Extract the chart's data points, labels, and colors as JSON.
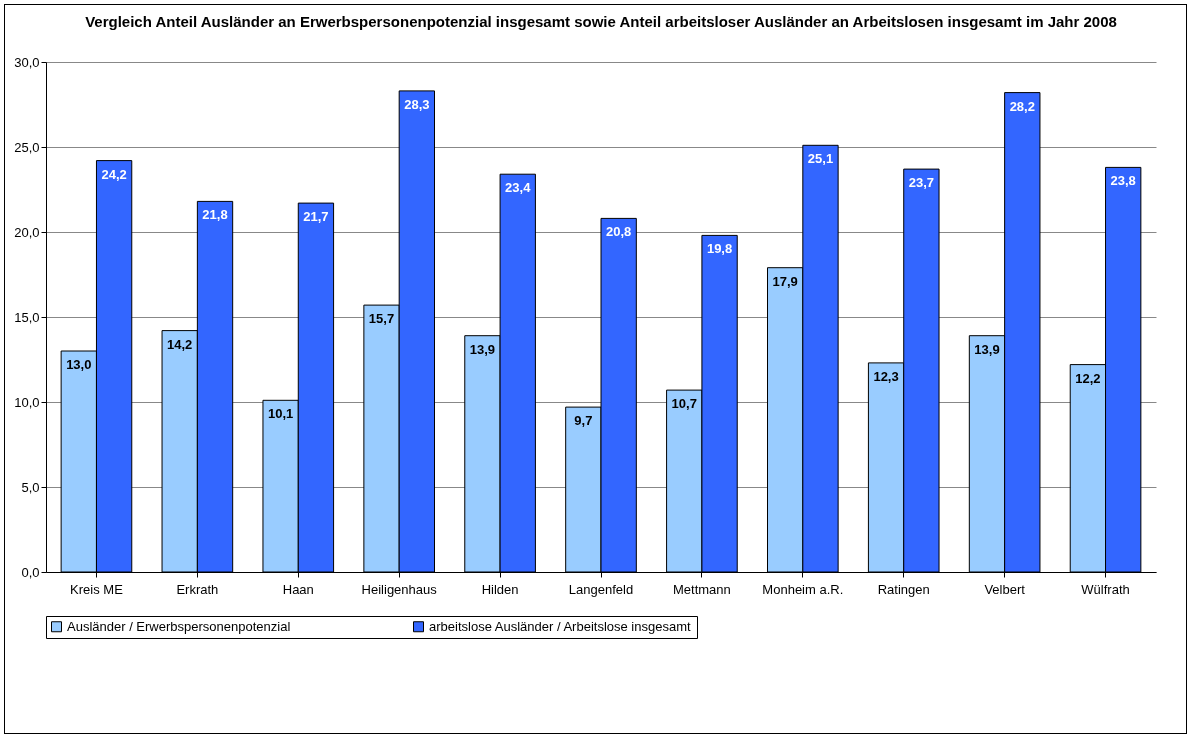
{
  "chart_data": {
    "type": "bar",
    "title": "Vergleich Anteil Ausländer an Erwerbspersonenpotenzial insgesamt sowie Anteil arbeitsloser Ausländer an Arbeitslosen insgesamt im Jahr 2008",
    "categories": [
      "Kreis ME",
      "Erkrath",
      "Haan",
      "Heiligenhaus",
      "Hilden",
      "Langenfeld",
      "Mettmann",
      "Monheim a.R.",
      "Ratingen",
      "Velbert",
      "Wülfrath"
    ],
    "series": [
      {
        "name": "Ausländer / Erwerbspersonenpotenzial",
        "color": "#99ccff",
        "values": [
          13.0,
          14.2,
          10.1,
          15.7,
          13.9,
          9.7,
          10.7,
          17.9,
          12.3,
          13.9,
          12.2
        ],
        "value_labels": [
          "13,0",
          "14,2",
          "10,1",
          "15,7",
          "13,9",
          "9,7",
          "10,7",
          "17,9",
          "12,3",
          "13,9",
          "12,2"
        ]
      },
      {
        "name": "arbeitslose Ausländer / Arbeitslose insgesamt",
        "color": "#3366ff",
        "values": [
          24.2,
          21.8,
          21.7,
          28.3,
          23.4,
          20.8,
          19.8,
          25.1,
          23.7,
          28.2,
          23.8
        ],
        "value_labels": [
          "24,2",
          "21,8",
          "21,7",
          "28,3",
          "23,4",
          "20,8",
          "19,8",
          "25,1",
          "23,7",
          "28,2",
          "23,8"
        ]
      }
    ],
    "ylim": [
      0,
      30
    ],
    "yticks": [
      {
        "value": 0,
        "label": "0,0"
      },
      {
        "value": 5,
        "label": "5,0"
      },
      {
        "value": 10,
        "label": "10,0"
      },
      {
        "value": 15,
        "label": "15,0"
      },
      {
        "value": 20,
        "label": "20,0"
      },
      {
        "value": 25,
        "label": "25,0"
      },
      {
        "value": 30,
        "label": "30,0"
      }
    ],
    "grid": "y",
    "legend": "bottom"
  }
}
